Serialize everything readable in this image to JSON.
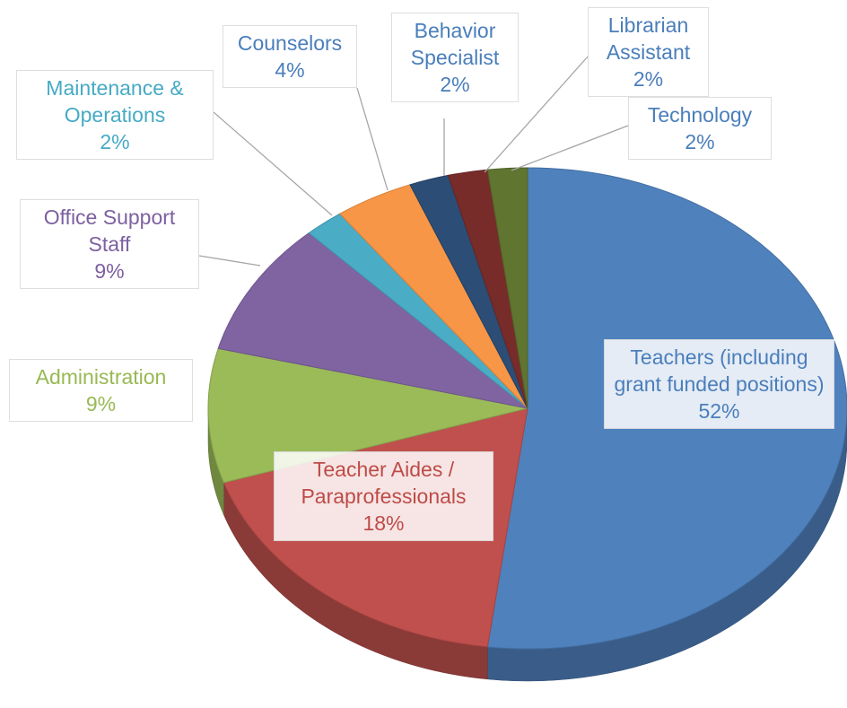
{
  "chart_data": {
    "type": "pie",
    "categories": [
      "Teachers (including grant funded positions)",
      "Teacher Aides / Paraprofessionals",
      "Administration",
      "Office Support Staff",
      "Maintenance & Operations",
      "Counselors",
      "Behavior Specialist",
      "Librarian Assistant",
      "Technology"
    ],
    "values": [
      52,
      18,
      9,
      9,
      2,
      4,
      2,
      2,
      2
    ],
    "value_labels": [
      "52%",
      "18%",
      "9%",
      "9%",
      "2%",
      "4%",
      "2%",
      "2%",
      "2%"
    ],
    "colors": [
      "#4f81bd",
      "#c0504d",
      "#9bbb59",
      "#8064a2",
      "#4bacc6",
      "#f79646",
      "#2c4d75",
      "#772c2a",
      "#5f7530"
    ],
    "label_colors": [
      "#4a7ebb",
      "#be4b48",
      "#98b954",
      "#7d60a0",
      "#46aac5",
      "#4a7ebb",
      "#4a7ebb",
      "#4a7ebb",
      "#4a7ebb"
    ]
  }
}
